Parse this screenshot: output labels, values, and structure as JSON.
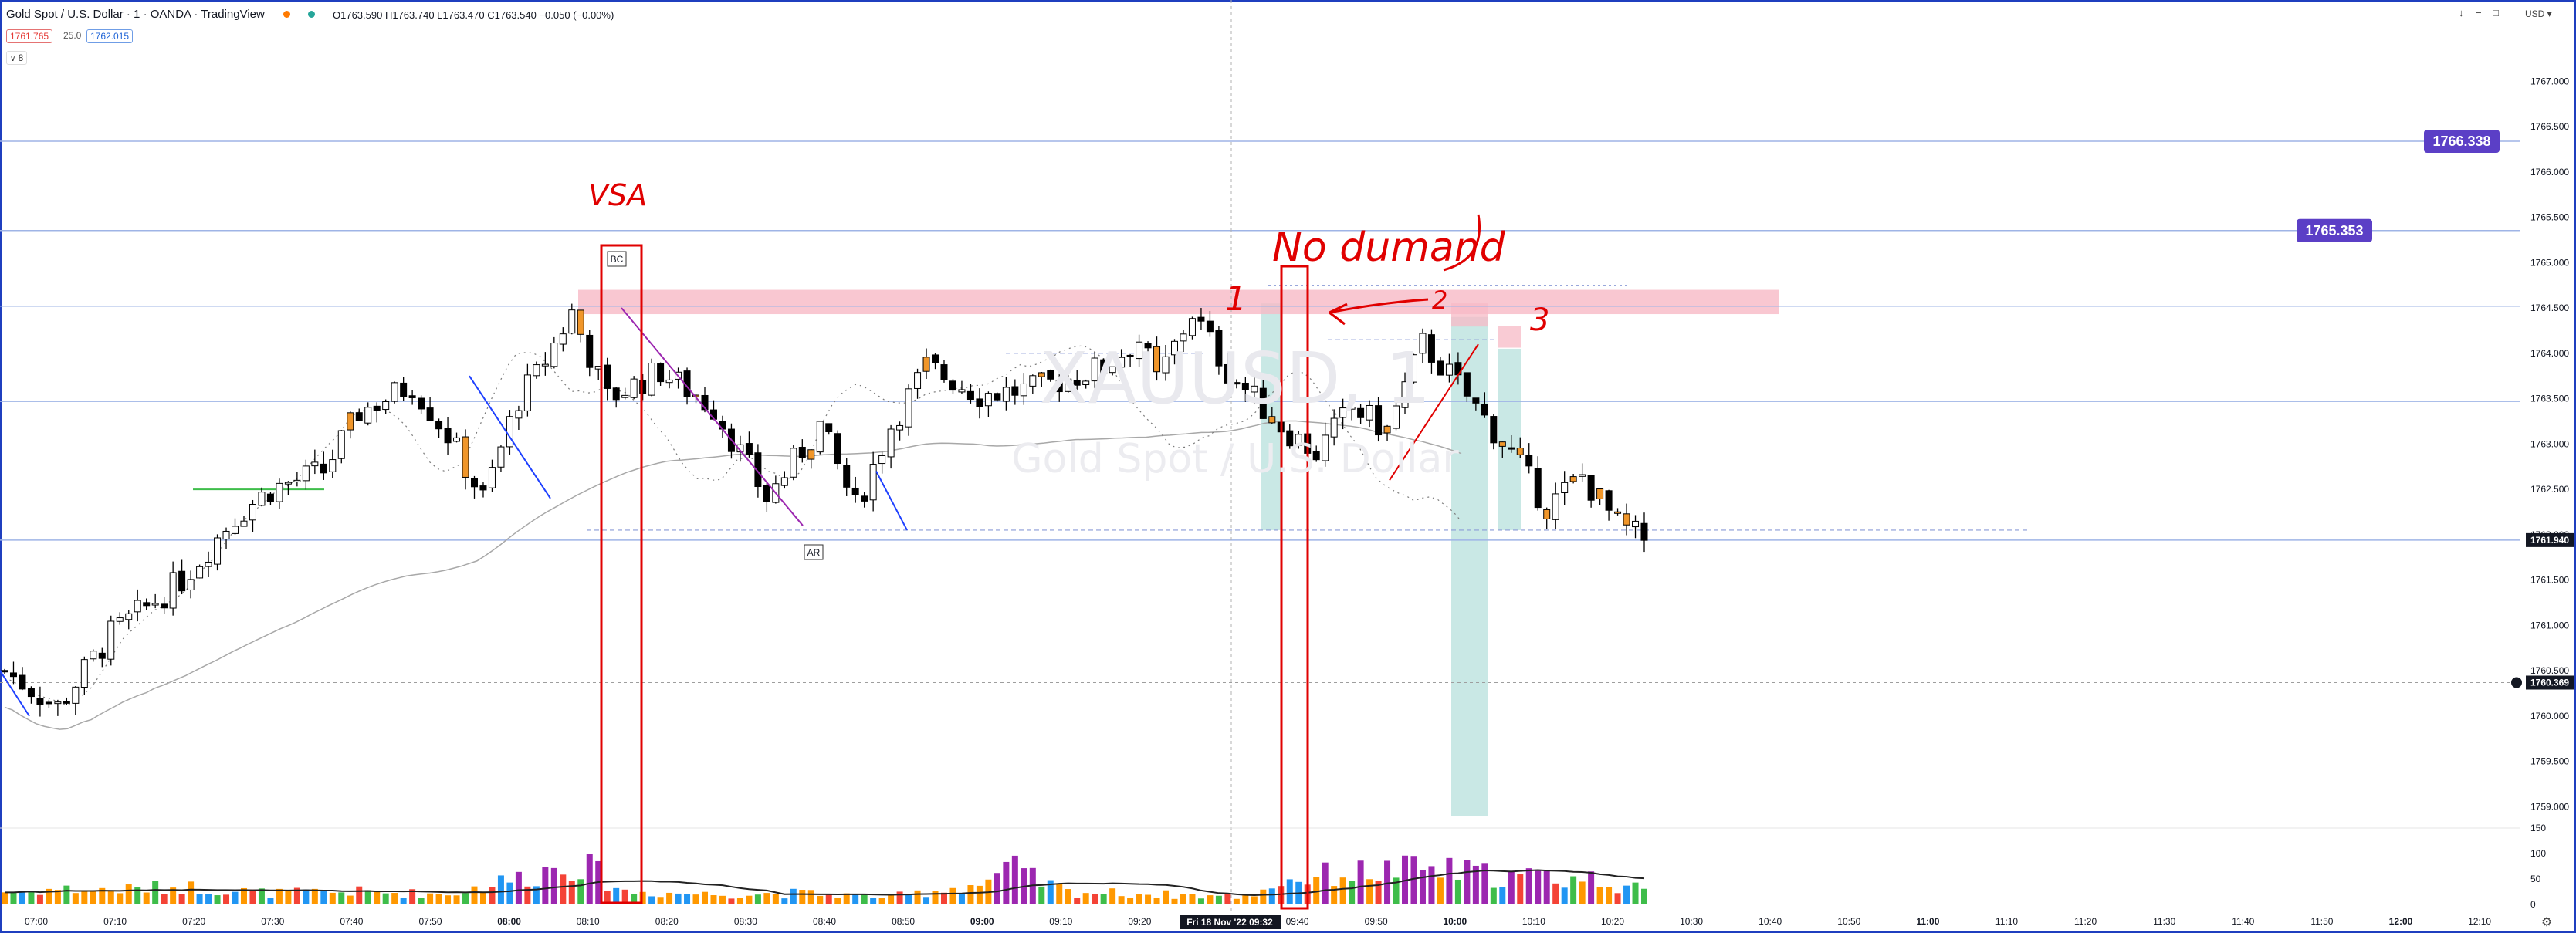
{
  "header": {
    "symbol_title": "Gold Spot / U.S. Dollar · 1 · OANDA · TradingView",
    "ohlc_text": "O1763.590 H1763.740 L1763.470 C1763.540 −0.050 (−0.00%)",
    "bid": "1761.765",
    "spread": "25.0",
    "ask": "1762.015",
    "indicator_label": "8",
    "currency": "USD"
  },
  "colors": {
    "up_candle": "#ffffff",
    "down_candle": "#000000",
    "orange_candle": "#f0962a",
    "hline": "#9fb4e6",
    "label_purple": "#5b3fc6",
    "annotation_red": "#e00000",
    "supply_zone": "#f7b9c6",
    "teal_zone": "#bfe4e0",
    "vol_orange": "#ff9800",
    "vol_green": "#3ebd4a",
    "vol_blue": "#2196f3",
    "vol_purple": "#9c27b0",
    "vol_red": "#f44336"
  },
  "chart_data": {
    "type": "candlestick",
    "symbol": "XAUUSD",
    "timeframe": "1",
    "x_tick_labels": [
      "07:00",
      "07:10",
      "07:20",
      "07:30",
      "07:40",
      "07:50",
      "08:00",
      "08:10",
      "08:20",
      "08:30",
      "08:40",
      "08:50",
      "09:00",
      "09:10",
      "09:20",
      "09:40",
      "09:50",
      "10:00",
      "10:10",
      "10:20",
      "10:30",
      "10:40",
      "10:50",
      "11:00",
      "11:10",
      "11:20",
      "11:30",
      "11:40",
      "11:50",
      "12:00",
      "12:10"
    ],
    "crosshair_x_label": "Fri 18 Nov '22   09:32",
    "y_tick_labels": [
      "1767.000",
      "1766.500",
      "1766.000",
      "1765.500",
      "1765.000",
      "1764.500",
      "1764.000",
      "1763.500",
      "1763.000",
      "1762.500",
      "1762.000",
      "1761.500",
      "1761.000",
      "1760.500",
      "1760.000",
      "1759.500",
      "1759.000"
    ],
    "ylim": [
      1758.85,
      1767.3
    ],
    "price_labels": [
      {
        "text": "1766.338",
        "value": 1766.338
      },
      {
        "text": "1765.353",
        "value": 1765.353
      },
      {
        "text": "1761.940",
        "value": 1761.94
      },
      {
        "text": "1760.369",
        "value": 1760.369
      }
    ],
    "horizontal_lines": [
      1766.338,
      1765.353,
      1764.52,
      1763.47,
      1761.94
    ],
    "volume_axis_labels": [
      "150",
      "100",
      "50",
      "0"
    ],
    "volume_max": 150,
    "annotations": [
      {
        "text": "VSA"
      },
      {
        "text": "No dumand"
      },
      {
        "text": "1"
      },
      {
        "text": "2"
      },
      {
        "text": "3"
      },
      {
        "text": "BC"
      },
      {
        "text": "AR"
      }
    ],
    "watermark": {
      "symbol": "XAUUSD, 1",
      "name": "Gold Spot / U.S. Dollar"
    },
    "seed": 7,
    "price_path": [
      [
        0,
        1760.5
      ],
      [
        6,
        1760.1
      ],
      [
        12,
        1760.9
      ],
      [
        20,
        1761.5
      ],
      [
        26,
        1762.2
      ],
      [
        30,
        1762.5
      ],
      [
        36,
        1762.7
      ],
      [
        40,
        1763.35
      ],
      [
        46,
        1763.65
      ],
      [
        50,
        1763.1
      ],
      [
        54,
        1762.4
      ],
      [
        58,
        1763.5
      ],
      [
        60,
        1763.75
      ],
      [
        64,
        1764.45
      ],
      [
        68,
        1763.5
      ],
      [
        74,
        1763.8
      ],
      [
        80,
        1763.4
      ],
      [
        86,
        1762.4
      ],
      [
        92,
        1763.2
      ],
      [
        96,
        1762.3
      ],
      [
        100,
        1763.2
      ],
      [
        104,
        1763.85
      ],
      [
        110,
        1763.55
      ],
      [
        116,
        1763.6
      ],
      [
        124,
        1763.85
      ],
      [
        128,
        1764.15
      ],
      [
        130,
        1763.7
      ],
      [
        134,
        1764.45
      ],
      [
        138,
        1763.8
      ],
      [
        144,
        1763.2
      ],
      [
        148,
        1762.9
      ],
      [
        152,
        1763.4
      ],
      [
        156,
        1763.15
      ],
      [
        160,
        1764.1
      ],
      [
        164,
        1763.65
      ],
      [
        170,
        1762.9
      ],
      [
        174,
        1762.3
      ],
      [
        178,
        1762.65
      ],
      [
        182,
        1762.1
      ],
      [
        185,
        1761.95
      ]
    ],
    "volume_path": [
      [
        0,
        25
      ],
      [
        6,
        30
      ],
      [
        12,
        28
      ],
      [
        20,
        35
      ],
      [
        30,
        22
      ],
      [
        40,
        25
      ],
      [
        50,
        20
      ],
      [
        60,
        60
      ],
      [
        64,
        85
      ],
      [
        66,
        70
      ],
      [
        70,
        25
      ],
      [
        80,
        20
      ],
      [
        90,
        22
      ],
      [
        100,
        15
      ],
      [
        110,
        40
      ],
      [
        114,
        70
      ],
      [
        116,
        50
      ],
      [
        120,
        25
      ],
      [
        130,
        20
      ],
      [
        140,
        15
      ],
      [
        144,
        45
      ],
      [
        150,
        60
      ],
      [
        160,
        70
      ],
      [
        170,
        55
      ],
      [
        180,
        50
      ],
      [
        185,
        25
      ]
    ]
  }
}
